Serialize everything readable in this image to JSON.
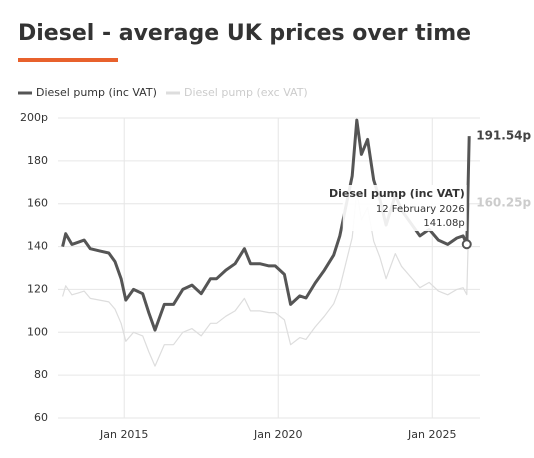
{
  "chart_data": {
    "type": "line",
    "title": "Diesel - average UK prices over time",
    "xlim": [
      2012.85,
      2026.55
    ],
    "xticks": [
      {
        "value": 2015,
        "label": "Jan 2015"
      },
      {
        "value": 2020,
        "label": "Jan 2020"
      },
      {
        "value": 2025,
        "label": "Jan 2025"
      }
    ],
    "ylim": [
      60,
      200
    ],
    "yticks": [
      60,
      80,
      100,
      120,
      140,
      160,
      180,
      {
        "value": 200,
        "label": "200p"
      }
    ],
    "grid": true,
    "x": [
      2013.0,
      2013.1,
      2013.3,
      2013.5,
      2013.7,
      2013.9,
      2014.2,
      2014.5,
      2014.7,
      2014.9,
      2015.05,
      2015.3,
      2015.6,
      2015.8,
      2016.0,
      2016.3,
      2016.6,
      2016.9,
      2017.2,
      2017.5,
      2017.8,
      2018.0,
      2018.3,
      2018.6,
      2018.9,
      2019.1,
      2019.4,
      2019.7,
      2019.9,
      2020.2,
      2020.4,
      2020.7,
      2020.9,
      2021.2,
      2021.5,
      2021.8,
      2022.0,
      2022.2,
      2022.4,
      2022.55,
      2022.7,
      2022.9,
      2023.1,
      2023.3,
      2023.5,
      2023.8,
      2024.0,
      2024.3,
      2024.6,
      2024.9,
      2025.2,
      2025.5,
      2025.8,
      2026.0,
      2026.12,
      2026.2
    ],
    "series": [
      {
        "name": "Diesel pump (exc VAT)",
        "color": "#dddddd",
        "values": [
          116.7,
          121.7,
          117.5,
          118.3,
          119.2,
          115.8,
          115.0,
          114.2,
          110.8,
          104.2,
          95.8,
          100.0,
          98.3,
          90.8,
          84.2,
          94.2,
          94.2,
          100.0,
          101.7,
          98.3,
          104.2,
          104.2,
          107.5,
          110.0,
          115.8,
          110.0,
          110.0,
          109.2,
          109.2,
          105.8,
          94.2,
          97.5,
          96.7,
          102.5,
          107.5,
          113.3,
          120.8,
          132.5,
          144.2,
          165.8,
          152.5,
          158.3,
          142.5,
          135.0,
          125.0,
          136.7,
          130.8,
          125.8,
          120.8,
          123.3,
          119.2,
          117.5,
          120.0,
          120.8,
          117.6,
          160.25
        ],
        "end_label": "160.25p"
      },
      {
        "name": "Diesel pump (inc VAT)",
        "color": "#555555",
        "values": [
          140,
          146,
          141,
          142,
          143,
          139,
          138,
          137,
          133,
          125,
          115,
          120,
          118,
          109,
          101,
          113,
          113,
          120,
          122,
          118,
          125,
          125,
          129,
          132,
          139,
          132,
          132,
          131,
          131,
          127,
          113,
          117,
          116,
          123,
          129,
          136,
          145,
          159,
          173,
          199,
          183,
          190,
          171,
          162,
          150,
          164,
          157,
          151,
          145,
          148,
          143,
          141,
          144,
          145,
          141.08,
          191.54
        ],
        "end_label": "191.54p"
      }
    ],
    "tooltip": {
      "series": "Diesel pump (inc VAT)",
      "date": "12 February 2026",
      "value": "141.08p"
    }
  }
}
